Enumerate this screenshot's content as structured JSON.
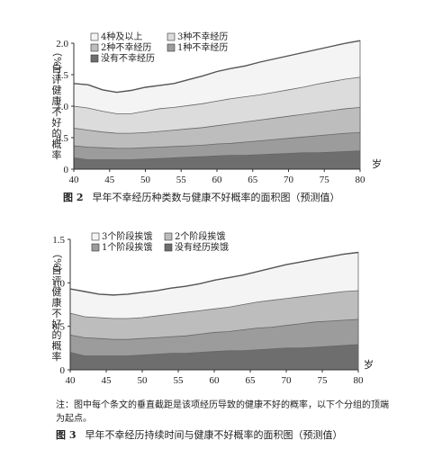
{
  "chart_data": [
    {
      "type": "area",
      "stacked": true,
      "ylabel": "自评健康不好的概率（%）",
      "xunit": "岁",
      "xlim": [
        40,
        80
      ],
      "ylim": [
        0,
        2.0
      ],
      "xticks": [
        "40",
        "45",
        "50",
        "55",
        "60",
        "65",
        "70",
        "75",
        "80"
      ],
      "yticks": [
        "0",
        "0.5",
        "1.0",
        "1.5",
        "2.0"
      ],
      "x": [
        40,
        42,
        44,
        46,
        48,
        50,
        52,
        54,
        56,
        58,
        60,
        62,
        64,
        66,
        68,
        70,
        72,
        74,
        76,
        78,
        80
      ],
      "series": [
        {
          "name": "没有不幸经历",
          "color": "#6e6e6e",
          "values": [
            0.18,
            0.15,
            0.15,
            0.15,
            0.15,
            0.16,
            0.17,
            0.18,
            0.19,
            0.2,
            0.21,
            0.22,
            0.22,
            0.23,
            0.24,
            0.25,
            0.26,
            0.26,
            0.27,
            0.28,
            0.29
          ]
        },
        {
          "name": "1种不幸经历",
          "color": "#9c9c9c",
          "values": [
            0.37,
            0.35,
            0.34,
            0.33,
            0.33,
            0.34,
            0.35,
            0.36,
            0.37,
            0.38,
            0.4,
            0.41,
            0.43,
            0.45,
            0.47,
            0.49,
            0.51,
            0.53,
            0.55,
            0.57,
            0.58
          ]
        },
        {
          "name": "2种不幸经历",
          "color": "#bdbdbd",
          "values": [
            0.65,
            0.62,
            0.59,
            0.57,
            0.57,
            0.58,
            0.6,
            0.62,
            0.64,
            0.66,
            0.69,
            0.72,
            0.75,
            0.78,
            0.81,
            0.84,
            0.87,
            0.9,
            0.93,
            0.96,
            0.98
          ]
        },
        {
          "name": "3种不幸经历",
          "color": "#dcdcdc",
          "values": [
            1.0,
            0.97,
            0.92,
            0.88,
            0.88,
            0.92,
            0.96,
            0.98,
            1.01,
            1.04,
            1.08,
            1.12,
            1.15,
            1.18,
            1.22,
            1.26,
            1.3,
            1.35,
            1.39,
            1.43,
            1.46
          ]
        },
        {
          "name": "4种及以上",
          "color": "#f4f4f4",
          "values": [
            1.36,
            1.34,
            1.26,
            1.22,
            1.25,
            1.3,
            1.33,
            1.36,
            1.42,
            1.48,
            1.55,
            1.6,
            1.64,
            1.7,
            1.75,
            1.8,
            1.85,
            1.9,
            1.95,
            2.0,
            2.04
          ]
        }
      ],
      "legend": {
        "placement": "top-left",
        "order": [
          "4种及以上",
          "3种不幸经历",
          "2种不幸经历",
          "1种不幸经历",
          "没有不幸经历"
        ]
      }
    },
    {
      "type": "area",
      "stacked": true,
      "ylabel": "自评健康不好的概率（%）",
      "xunit": "岁",
      "xlim": [
        40,
        80
      ],
      "ylim": [
        0,
        1.5
      ],
      "xticks": [
        "40",
        "45",
        "50",
        "55",
        "60",
        "65",
        "70",
        "75",
        "80"
      ],
      "yticks": [
        "0",
        "0.5",
        "1.0",
        "1.5"
      ],
      "x": [
        40,
        42,
        44,
        46,
        48,
        50,
        52,
        54,
        56,
        58,
        60,
        62,
        64,
        66,
        68,
        70,
        72,
        74,
        76,
        78,
        80
      ],
      "series": [
        {
          "name": "没有经历挨饿",
          "color": "#6e6e6e",
          "values": [
            0.2,
            0.16,
            0.16,
            0.16,
            0.16,
            0.17,
            0.18,
            0.19,
            0.19,
            0.2,
            0.21,
            0.22,
            0.22,
            0.23,
            0.24,
            0.25,
            0.25,
            0.26,
            0.27,
            0.28,
            0.29
          ]
        },
        {
          "name": "1个阶段挨饿",
          "color": "#9c9c9c",
          "values": [
            0.4,
            0.37,
            0.36,
            0.35,
            0.35,
            0.36,
            0.37,
            0.38,
            0.39,
            0.41,
            0.43,
            0.44,
            0.46,
            0.48,
            0.49,
            0.51,
            0.53,
            0.55,
            0.56,
            0.57,
            0.58
          ]
        },
        {
          "name": "2个阶段挨饿",
          "color": "#bdbdbd",
          "values": [
            0.65,
            0.61,
            0.6,
            0.59,
            0.59,
            0.6,
            0.62,
            0.64,
            0.66,
            0.68,
            0.7,
            0.72,
            0.75,
            0.78,
            0.8,
            0.82,
            0.84,
            0.86,
            0.88,
            0.9,
            0.91
          ]
        },
        {
          "name": "3个阶段挨饿",
          "color": "#f4f4f4",
          "values": [
            0.93,
            0.9,
            0.87,
            0.86,
            0.87,
            0.89,
            0.91,
            0.94,
            0.96,
            0.99,
            1.03,
            1.06,
            1.09,
            1.13,
            1.17,
            1.21,
            1.24,
            1.27,
            1.3,
            1.33,
            1.35
          ]
        }
      ],
      "legend": {
        "placement": "top-left",
        "order": [
          "3个阶段挨饿",
          "2个阶段挨饿",
          "1个阶段挨饿",
          "没有经历挨饿"
        ]
      }
    }
  ],
  "figure2": {
    "ylabel_unit": "（%）",
    "ylabel_text": "自评健康不好的概率",
    "legend": [
      "4种及以上",
      "3种不幸经历",
      "2种不幸经历",
      "1种不幸经历",
      "没有不幸经历"
    ],
    "caption_num": "图 2",
    "caption_text": "早年不幸经历种类数与健康不好概率的面积图（预测值）",
    "xunit": "岁"
  },
  "figure3": {
    "ylabel_unit": "（%）",
    "ylabel_text": "自评健康不好的概率",
    "legend": [
      "3个阶段挨饿",
      "2个阶段挨饿",
      "1个阶段挨饿",
      "没有经历挨饿"
    ],
    "caption_num": "图 3",
    "caption_text": "早年不幸经历持续时间与健康不好概率的面积图（预测值）",
    "xunit": "岁"
  },
  "note": "注：图中每个条文的垂直截距是该项经历导致的健康不好的概率，以下个分组的顶端为起点。"
}
